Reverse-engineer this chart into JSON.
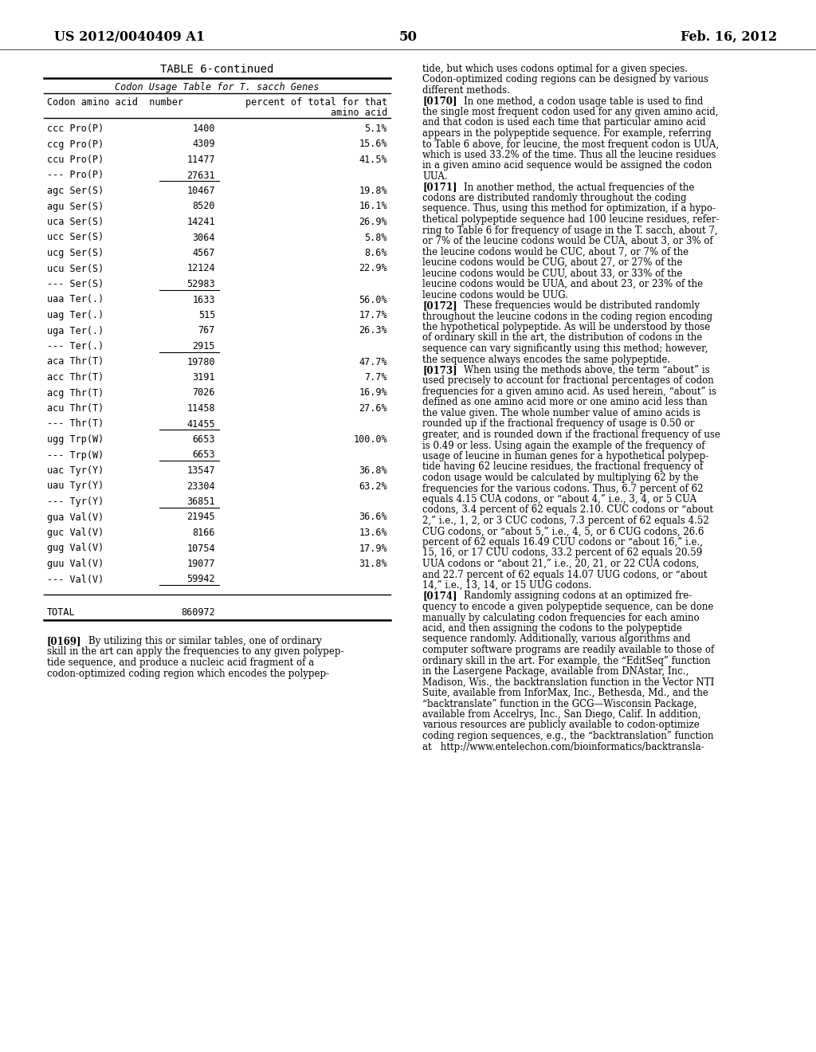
{
  "page_number": "50",
  "patent_number": "US 2012/0040409 A1",
  "date": "Feb. 16, 2012",
  "table_title": "TABLE 6-continued",
  "table_subtitle": "Codon Usage Table for T. sacch Genes",
  "table_rows": [
    [
      "ccc Pro(P)",
      "1400",
      "5.1%"
    ],
    [
      "ccg Pro(P)",
      "4309",
      "15.6%"
    ],
    [
      "ccu Pro(P)",
      "11477",
      "41.5%"
    ],
    [
      "--- Pro(P)",
      "27631",
      ""
    ],
    [
      "agc Ser(S)",
      "10467",
      "19.8%"
    ],
    [
      "agu Ser(S)",
      "8520",
      "16.1%"
    ],
    [
      "uca Ser(S)",
      "14241",
      "26.9%"
    ],
    [
      "ucc Ser(S)",
      "3064",
      "5.8%"
    ],
    [
      "ucg Ser(S)",
      "4567",
      "8.6%"
    ],
    [
      "ucu Ser(S)",
      "12124",
      "22.9%"
    ],
    [
      "--- Ser(S)",
      "52983",
      ""
    ],
    [
      "uaa Ter(.)",
      "1633",
      "56.0%"
    ],
    [
      "uag Ter(.)",
      "515",
      "17.7%"
    ],
    [
      "uga Ter(.)",
      "767",
      "26.3%"
    ],
    [
      "--- Ter(.)",
      "2915",
      ""
    ],
    [
      "aca Thr(T)",
      "19780",
      "47.7%"
    ],
    [
      "acc Thr(T)",
      "3191",
      "7.7%"
    ],
    [
      "acg Thr(T)",
      "7026",
      "16.9%"
    ],
    [
      "acu Thr(T)",
      "11458",
      "27.6%"
    ],
    [
      "--- Thr(T)",
      "41455",
      ""
    ],
    [
      "ugg Trp(W)",
      "6653",
      "100.0%"
    ],
    [
      "--- Trp(W)",
      "6653",
      ""
    ],
    [
      "uac Tyr(Y)",
      "13547",
      "36.8%"
    ],
    [
      "uau Tyr(Y)",
      "23304",
      "63.2%"
    ],
    [
      "--- Tyr(Y)",
      "36851",
      ""
    ],
    [
      "gua Val(V)",
      "21945",
      "36.6%"
    ],
    [
      "guc Val(V)",
      "8166",
      "13.6%"
    ],
    [
      "gug Val(V)",
      "10754",
      "17.9%"
    ],
    [
      "guu Val(V)",
      "19077",
      "31.8%"
    ],
    [
      "--- Val(V)",
      "59942",
      ""
    ]
  ],
  "total_row": [
    "TOTAL",
    "860972",
    ""
  ],
  "right_col_lines": [
    {
      "text": "tide, but which uses codons optimal for a given species.",
      "bold_prefix": ""
    },
    {
      "text": "Codon-optimized coding regions can be designed by various",
      "bold_prefix": ""
    },
    {
      "text": "different methods.",
      "bold_prefix": ""
    },
    {
      "text": "[0170]",
      "rest": "    In one method, a codon usage table is used to find",
      "bold_prefix": "[0170]"
    },
    {
      "text": "the single most frequent codon used for any given amino acid,",
      "bold_prefix": ""
    },
    {
      "text": "and that codon is used each time that particular amino acid",
      "bold_prefix": ""
    },
    {
      "text": "appears in the polypeptide sequence. For example, referring",
      "bold_prefix": ""
    },
    {
      "text": "to Table 6 above, for leucine, the most frequent codon is UUA,",
      "bold_prefix": ""
    },
    {
      "text": "which is used 33.2% of the time. Thus all the leucine residues",
      "bold_prefix": ""
    },
    {
      "text": "in a given amino acid sequence would be assigned the codon",
      "bold_prefix": ""
    },
    {
      "text": "UUA.",
      "bold_prefix": ""
    },
    {
      "text": "[0171]",
      "rest": "    In another method, the actual frequencies of the",
      "bold_prefix": "[0171]"
    },
    {
      "text": "codons are distributed randomly throughout the coding",
      "bold_prefix": ""
    },
    {
      "text": "sequence. Thus, using this method for optimization, if a hypo-",
      "bold_prefix": ""
    },
    {
      "text": "thetical polypeptide sequence had 100 leucine residues, refer-",
      "bold_prefix": ""
    },
    {
      "text": "ring to Table 6 for frequency of usage in the T. sacch, about 7,",
      "bold_prefix": ""
    },
    {
      "text": "or 7% of the leucine codons would be CUA, about 3, or 3% of",
      "bold_prefix": ""
    },
    {
      "text": "the leucine codons would be CUC, about 7, or 7% of the",
      "bold_prefix": ""
    },
    {
      "text": "leucine codons would be CUG, about 27, or 27% of the",
      "bold_prefix": ""
    },
    {
      "text": "leucine codons would be CUU, about 33, or 33% of the",
      "bold_prefix": ""
    },
    {
      "text": "leucine codons would be UUA, and about 23, or 23% of the",
      "bold_prefix": ""
    },
    {
      "text": "leucine codons would be UUG.",
      "bold_prefix": ""
    },
    {
      "text": "[0172]",
      "rest": "    These frequencies would be distributed randomly",
      "bold_prefix": "[0172]"
    },
    {
      "text": "throughout the leucine codons in the coding region encoding",
      "bold_prefix": ""
    },
    {
      "text": "the hypothetical polypeptide. As will be understood by those",
      "bold_prefix": ""
    },
    {
      "text": "of ordinary skill in the art, the distribution of codons in the",
      "bold_prefix": ""
    },
    {
      "text": "sequence can vary significantly using this method; however,",
      "bold_prefix": ""
    },
    {
      "text": "the sequence always encodes the same polypeptide.",
      "bold_prefix": ""
    },
    {
      "text": "[0173]",
      "rest": "    When using the methods above, the term “about” is",
      "bold_prefix": "[0173]"
    },
    {
      "text": "used precisely to account for fractional percentages of codon",
      "bold_prefix": ""
    },
    {
      "text": "frequencies for a given amino acid. As used herein, “about” is",
      "bold_prefix": ""
    },
    {
      "text": "defined as one amino acid more or one amino acid less than",
      "bold_prefix": ""
    },
    {
      "text": "the value given. The whole number value of amino acids is",
      "bold_prefix": ""
    },
    {
      "text": "rounded up if the fractional frequency of usage is 0.50 or",
      "bold_prefix": ""
    },
    {
      "text": "greater, and is rounded down if the fractional frequency of use",
      "bold_prefix": ""
    },
    {
      "text": "is 0.49 or less. Using again the example of the frequency of",
      "bold_prefix": ""
    },
    {
      "text": "usage of leucine in human genes for a hypothetical polypep-",
      "bold_prefix": ""
    },
    {
      "text": "tide having 62 leucine residues, the fractional frequency of",
      "bold_prefix": ""
    },
    {
      "text": "codon usage would be calculated by multiplying 62 by the",
      "bold_prefix": ""
    },
    {
      "text": "frequencies for the various codons. Thus, 6.7 percent of 62",
      "bold_prefix": ""
    },
    {
      "text": "equals 4.15 CUA codons, or “about 4,” i.e., 3, 4, or 5 CUA",
      "bold_prefix": ""
    },
    {
      "text": "codons, 3.4 percent of 62 equals 2.10. CUC codons or “about",
      "bold_prefix": ""
    },
    {
      "text": "2,” i.e., 1, 2, or 3 CUC codons, 7.3 percent of 62 equals 4.52",
      "bold_prefix": ""
    },
    {
      "text": "CUG codons, or “about 5,” i.e., 4, 5, or 6 CUG codons, 26.6",
      "bold_prefix": ""
    },
    {
      "text": "percent of 62 equals 16.49 CUU codons or “about 16,” i.e.,",
      "bold_prefix": ""
    },
    {
      "text": "15, 16, or 17 CUU codons, 33.2 percent of 62 equals 20.59",
      "bold_prefix": ""
    },
    {
      "text": "UUA codons or “about 21,” i.e., 20, 21, or 22 CUA codons,",
      "bold_prefix": ""
    },
    {
      "text": "and 22.7 percent of 62 equals 14.07 UUG codons, or “about",
      "bold_prefix": ""
    },
    {
      "text": "14,” i.e., 13, 14, or 15 UUG codons.",
      "bold_prefix": ""
    },
    {
      "text": "[0174]",
      "rest": "    Randomly assigning codons at an optimized fre-",
      "bold_prefix": "[0174]"
    },
    {
      "text": "quency to encode a given polypeptide sequence, can be done",
      "bold_prefix": ""
    },
    {
      "text": "manually by calculating codon frequencies for each amino",
      "bold_prefix": ""
    },
    {
      "text": "acid, and then assigning the codons to the polypeptide",
      "bold_prefix": ""
    },
    {
      "text": "sequence randomly. Additionally, various algorithms and",
      "bold_prefix": ""
    },
    {
      "text": "computer software programs are readily available to those of",
      "bold_prefix": ""
    },
    {
      "text": "ordinary skill in the art. For example, the “EditSeq” function",
      "bold_prefix": ""
    },
    {
      "text": "in the Lasergene Package, available from DNAstar, Inc.,",
      "bold_prefix": ""
    },
    {
      "text": "Madison, Wis., the backtranslation function in the Vector NTI",
      "bold_prefix": ""
    },
    {
      "text": "Suite, available from InforMax, Inc., Bethesda, Md., and the",
      "bold_prefix": ""
    },
    {
      "text": "“backtranslate” function in the GCG—Wisconsin Package,",
      "bold_prefix": ""
    },
    {
      "text": "available from Accelrys, Inc., San Diego, Calif. In addition,",
      "bold_prefix": ""
    },
    {
      "text": "various resources are publicly available to codon-optimize",
      "bold_prefix": ""
    },
    {
      "text": "coding region sequences, e.g., the “backtranslation” function",
      "bold_prefix": ""
    },
    {
      "text": "at   http://www.entelechon.com/bioinformatics/backtransla-",
      "bold_prefix": ""
    }
  ],
  "bottom_left_lines": [
    {
      "text": "[0169]",
      "rest": "    By utilizing this or similar tables, one of ordinary",
      "bold_prefix": "[0169]"
    },
    {
      "text": "skill in the art can apply the frequencies to any given polypep-",
      "bold_prefix": ""
    },
    {
      "text": "tide sequence, and produce a nucleic acid fragment of a",
      "bold_prefix": ""
    },
    {
      "text": "codon-optimized coding region which encodes the polypep-",
      "bold_prefix": ""
    }
  ],
  "bg_color": "#ffffff",
  "text_color": "#000000"
}
